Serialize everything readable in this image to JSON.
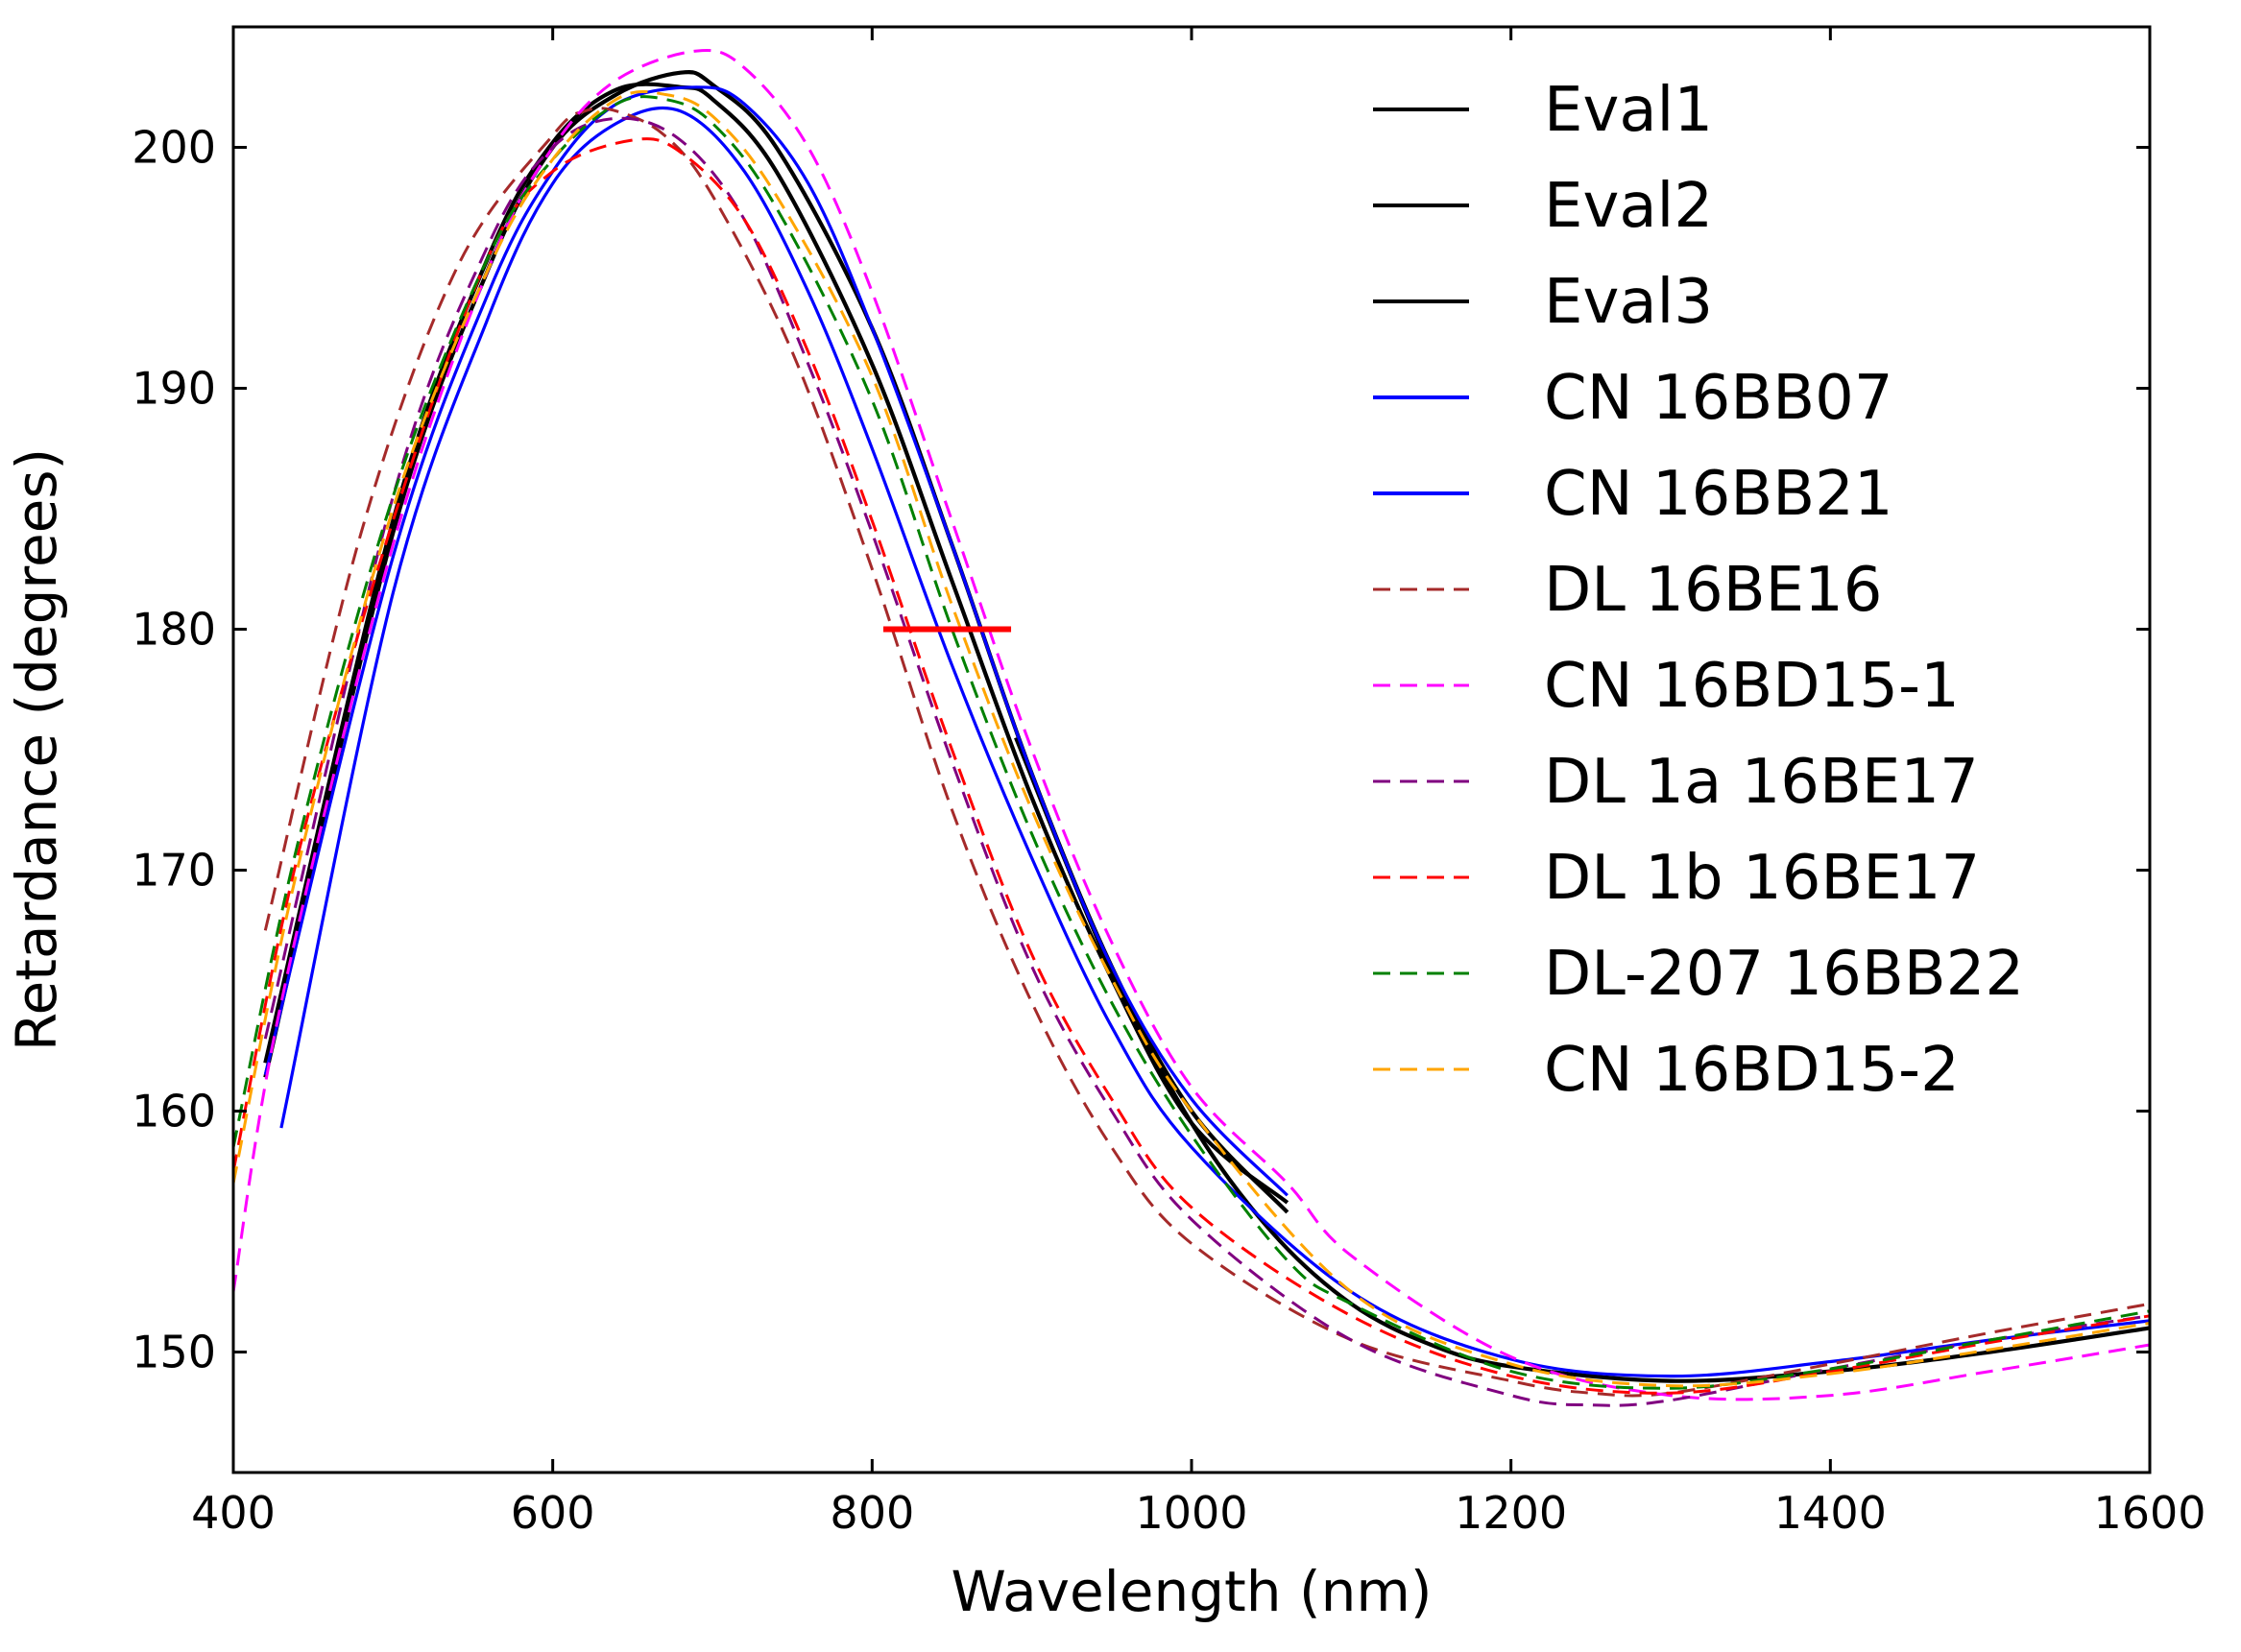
{
  "chart_data": {
    "type": "line",
    "title": "",
    "xlabel": "Wavelength (nm)",
    "ylabel": "Retardance (degrees)",
    "xlim": [
      400,
      1600
    ],
    "ylim": [
      145,
      205
    ],
    "xticks": [
      400,
      600,
      800,
      1000,
      1200,
      1400,
      1600
    ],
    "yticks": [
      150,
      160,
      170,
      180,
      190,
      200
    ],
    "grid": false,
    "legend_position": "top-right",
    "series": [
      {
        "name": "Eval1",
        "color": "#000000",
        "style": "solid",
        "x": [
          420,
          500,
          560,
          600,
          640,
          680,
          700,
          740,
          800,
          850,
          900,
          950,
          1000,
          1060
        ],
        "y": [
          161.4,
          184,
          195,
          200,
          202.2,
          203.1,
          202.6,
          200,
          192.5,
          183.5,
          174,
          166,
          160,
          155.8
        ]
      },
      {
        "name": "Eval2",
        "color": "#000000",
        "style": "solid",
        "x": [
          890,
          950,
          1000,
          1050,
          1100,
          1150,
          1200,
          1300,
          1400,
          1500,
          1600
        ],
        "y": [
          175.5,
          165.8,
          159.5,
          155,
          152,
          150.3,
          149.4,
          148.8,
          149.2,
          150,
          151
        ]
      },
      {
        "name": "Eval3",
        "color": "#000000",
        "style": "solid",
        "x": [
          420,
          500,
          560,
          600,
          640,
          680,
          700,
          740,
          800,
          850,
          900,
          950,
          1000,
          1060
        ],
        "y": [
          162,
          184.5,
          195.5,
          200.2,
          202.4,
          202.5,
          202,
          199,
          191,
          182,
          173,
          165.5,
          159.5,
          156.2
        ]
      },
      {
        "name": "CN 16BB07",
        "color": "#0000ff",
        "style": "solid",
        "x": [
          420,
          500,
          560,
          600,
          640,
          690,
          720,
          760,
          800,
          850,
          900,
          950,
          1000,
          1060
        ],
        "y": [
          161.5,
          183,
          194,
          199,
          201.8,
          202.5,
          201.8,
          198.5,
          192.5,
          183.5,
          174,
          166,
          160.5,
          156.5
        ]
      },
      {
        "name": "CN 16BB21",
        "color": "#0000ff",
        "style": "solid",
        "x": [
          430,
          500,
          560,
          600,
          640,
          680,
          720,
          760,
          800,
          850,
          900,
          950,
          1000,
          1100,
          1200,
          1300,
          1400,
          1500,
          1600
        ],
        "y": [
          159.3,
          181.5,
          193,
          198.5,
          201,
          201.5,
          199,
          194,
          187.5,
          178.5,
          170.5,
          163.5,
          158.5,
          152.5,
          149.7,
          149,
          149.6,
          150.5,
          151.3
        ]
      },
      {
        "name": "DL 16BE16",
        "color": "#a52a2a",
        "style": "dashed",
        "x": [
          420,
          480,
          540,
          600,
          620,
          640,
          670,
          700,
          750,
          800,
          850,
          900,
          950,
          1000,
          1100,
          1200,
          1250,
          1300,
          1400,
          1500,
          1600
        ],
        "y": [
          167.5,
          184,
          195,
          200.5,
          201.5,
          201.5,
          200.5,
          198,
          191.5,
          182.5,
          172.5,
          164.5,
          158.5,
          154.5,
          150.5,
          148.8,
          148.3,
          148.3,
          149.5,
          150.8,
          152
        ]
      },
      {
        "name": "CN 16BD15-1",
        "color": "#ff00ff",
        "style": "dashed",
        "x": [
          400,
          430,
          500,
          560,
          600,
          640,
          690,
          720,
          760,
          800,
          850,
          900,
          950,
          1000,
          1060,
          1100,
          1200,
          1300,
          1400,
          1500,
          1600
        ],
        "y": [
          152.5,
          164.5,
          183.5,
          195,
          200,
          202.8,
          204,
          203.3,
          200,
          194,
          184.5,
          175,
          167,
          161,
          157,
          154,
          149.8,
          148.2,
          148.2,
          149.2,
          150.3
        ]
      },
      {
        "name": "DL 1a 16BE17",
        "color": "#800080",
        "style": "dashed",
        "x": [
          420,
          500,
          560,
          600,
          640,
          680,
          720,
          760,
          800,
          850,
          900,
          950,
          1000,
          1100,
          1200,
          1250,
          1300,
          1400,
          1500,
          1600
        ],
        "y": [
          163,
          185.5,
          196,
          200,
          201.2,
          200.3,
          197,
          191,
          184,
          174.5,
          166,
          160,
          155.5,
          150.5,
          148.2,
          147.8,
          148,
          149.3,
          150.5,
          151.5
        ]
      },
      {
        "name": "DL 1b 16BE17",
        "color": "#ff0000",
        "style": "dashed",
        "x": [
          400,
          440,
          500,
          560,
          600,
          650,
          680,
          720,
          760,
          800,
          850,
          900,
          950,
          1000,
          1100,
          1200,
          1300,
          1400,
          1500,
          1600
        ],
        "y": [
          157.5,
          170.5,
          184.5,
          195.5,
          199,
          200.3,
          199.8,
          197,
          191.5,
          184.5,
          175,
          166.5,
          160.5,
          156,
          151.5,
          149,
          148.3,
          149.2,
          150.4,
          151.5
        ]
      },
      {
        "name": "DL-207 16BB22",
        "color": "#008000",
        "style": "dashed",
        "x": [
          400,
          440,
          500,
          560,
          600,
          640,
          670,
          700,
          740,
          800,
          850,
          900,
          950,
          1000,
          1060,
          1100,
          1200,
          1300,
          1400,
          1500,
          1600
        ],
        "y": [
          158.5,
          171,
          185.5,
          195.5,
          199.5,
          201.8,
          202,
          201,
          197.5,
          189.5,
          180,
          171.5,
          164.5,
          159,
          153.8,
          152,
          149.2,
          148.5,
          149.3,
          150.5,
          151.7
        ]
      },
      {
        "name": "CN 16BD15-2",
        "color": "#ffa500",
        "style": "dashed",
        "x": [
          400,
          440,
          500,
          560,
          600,
          640,
          670,
          700,
          740,
          800,
          850,
          900,
          950,
          1000,
          1100,
          1200,
          1300,
          1400,
          1500,
          1600
        ],
        "y": [
          157,
          170,
          185,
          195,
          199.5,
          202,
          202.2,
          201.3,
          198,
          190.5,
          181,
          172.5,
          165.5,
          160,
          152.5,
          149.5,
          148.6,
          149.1,
          150.1,
          151.2
        ]
      }
    ],
    "annotations": [
      {
        "type": "hline-segment",
        "color": "#ff0000",
        "x": [
          807,
          887
        ],
        "y": 180
      }
    ]
  }
}
